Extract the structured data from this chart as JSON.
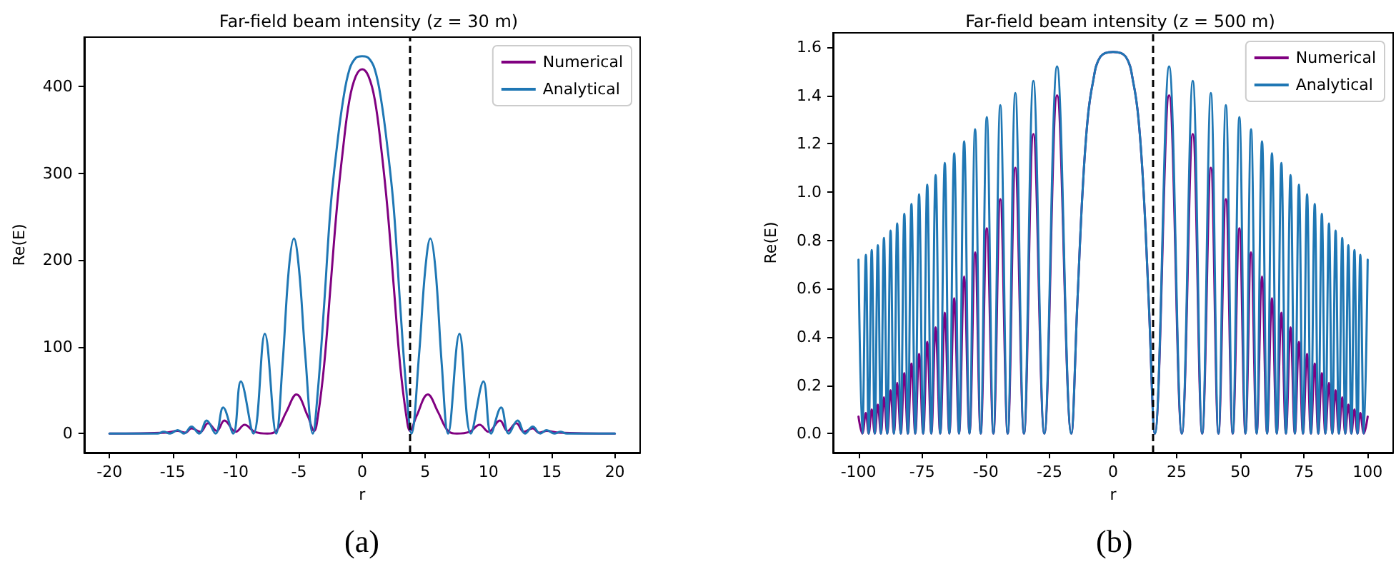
{
  "chart_data": [
    {
      "type": "line",
      "title": "Far-field beam intensity (z = 30 m)",
      "xlabel": "r",
      "ylabel": "Re(E)",
      "annotations": [
        "(a)"
      ],
      "xlim": [
        -22,
        22
      ],
      "xticks": [
        -20,
        -15,
        -10,
        -5,
        0,
        5,
        10,
        15,
        20
      ],
      "ylim": [
        -22,
        457
      ],
      "yticks": [
        0,
        100,
        200,
        300,
        400
      ],
      "legend": "top right",
      "grid": false,
      "ref_lines": [
        {
          "axis": "x",
          "value": 3.8,
          "color": "#000000",
          "line_style": "dashed"
        }
      ],
      "series": [
        {
          "name": "Numerical",
          "color": "#800080",
          "x": [
            -20,
            -15.5,
            -14.6,
            -14,
            -13.5,
            -12.8,
            -12.2,
            -11.5,
            -10.9,
            -10,
            -9.3,
            -8.5,
            -7.5,
            -6.8,
            -6,
            -5.2,
            -4.3,
            -3.8,
            -3.5,
            -3,
            -2.5,
            -2,
            -1.5,
            -1,
            -0.5,
            0,
            0.5,
            1,
            1.5,
            2,
            2.5,
            3,
            3.5,
            3.8,
            4.3,
            5.2,
            6,
            6.8,
            7.5,
            8.5,
            9.3,
            10,
            10.9,
            11.5,
            12.2,
            12.8,
            13.5,
            14,
            14.6,
            15.5,
            20
          ],
          "values": [
            0,
            1,
            3,
            1,
            6,
            2,
            12,
            3,
            15,
            2,
            10,
            2,
            0,
            3,
            25,
            45,
            20,
            3,
            20,
            80,
            170,
            260,
            330,
            385,
            412,
            420,
            412,
            385,
            330,
            260,
            170,
            80,
            20,
            3,
            20,
            45,
            25,
            3,
            0,
            2,
            10,
            2,
            15,
            3,
            12,
            2,
            6,
            1,
            3,
            1,
            0
          ]
        },
        {
          "name": "Analytical",
          "color": "#1f77b4",
          "x": [
            -20,
            -16.2,
            -15.7,
            -15.2,
            -14.6,
            -14.1,
            -13.5,
            -12.9,
            -12.3,
            -11.6,
            -11,
            -10.2,
            -9.6,
            -8.6,
            -7.7,
            -6.8,
            -6.3,
            -5.8,
            -5.4,
            -5,
            -4.5,
            -3.9,
            -3.5,
            -3,
            -2.5,
            -2,
            -1.5,
            -1,
            -0.5,
            0,
            0.5,
            1,
            1.5,
            2,
            2.5,
            3,
            3.5,
            3.9,
            4.5,
            5,
            5.4,
            5.8,
            6.3,
            6.8,
            7.7,
            8.6,
            9.6,
            10.2,
            11,
            11.6,
            12.3,
            12.9,
            13.5,
            14.1,
            14.6,
            15.2,
            15.7,
            16.2,
            20
          ],
          "values": [
            0,
            0,
            2,
            0,
            4,
            0,
            8,
            0,
            15,
            0,
            30,
            0,
            60,
            0,
            115,
            0,
            80,
            190,
            225,
            190,
            90,
            0,
            50,
            150,
            260,
            330,
            385,
            420,
            433,
            435,
            433,
            420,
            385,
            330,
            260,
            150,
            50,
            0,
            90,
            190,
            225,
            190,
            80,
            0,
            115,
            0,
            60,
            0,
            30,
            0,
            15,
            0,
            8,
            0,
            4,
            0,
            2,
            0,
            0
          ]
        }
      ]
    },
    {
      "type": "line",
      "title": "Far-field beam intensity (z = 500 m)",
      "xlabel": "r",
      "ylabel": "Re(E)",
      "annotations": [
        "(b)"
      ],
      "xlim": [
        -110,
        110
      ],
      "xticks": [
        -100,
        -75,
        -50,
        -25,
        0,
        25,
        50,
        75,
        100
      ],
      "ylim": [
        -0.079,
        1.659
      ],
      "yticks": [
        {
          "value": 0,
          "label": "0.0"
        },
        {
          "value": 0.2,
          "label": "0.2"
        },
        {
          "value": 0.4,
          "label": "0.4"
        },
        {
          "value": 0.6,
          "label": "0.6"
        },
        {
          "value": 0.8,
          "label": "0.8"
        },
        {
          "value": 1,
          "label": "1.0"
        },
        {
          "value": 1.2,
          "label": "1.2"
        },
        {
          "value": 1.4,
          "label": "1.4"
        },
        {
          "value": 1.6,
          "label": "1.6"
        }
      ],
      "legend": "top right",
      "grid": false,
      "ref_lines": [
        {
          "axis": "x",
          "value": 15.5,
          "color": "#000000",
          "line_style": "dashed"
        }
      ],
      "x": [
        -100,
        -98.5,
        -97.1,
        -96,
        -94.8,
        -93.6,
        -92.4,
        -91.2,
        -90,
        -88.7,
        -87.4,
        -86.1,
        -84.8,
        -83.4,
        -82,
        -80.6,
        -79.2,
        -77.7,
        -76.2,
        -74.6,
        -73,
        -71.4,
        -69.7,
        -67.9,
        -66.1,
        -64.3,
        -62.4,
        -60.5,
        -58.5,
        -56.4,
        -54.2,
        -52,
        -49.6,
        -47,
        -44.3,
        -41.4,
        -38.4,
        -35,
        -31.3,
        -27,
        -22,
        -16.4,
        -14,
        -12,
        -10,
        -8,
        -5,
        0,
        5,
        8,
        10,
        12,
        14,
        16.4,
        22,
        27,
        31.3,
        35,
        38.4,
        41.4,
        44.3,
        47,
        49.6,
        52,
        54.2,
        56.4,
        58.5,
        60.5,
        62.4,
        64.3,
        66.1,
        67.9,
        69.7,
        71.4,
        73,
        74.6,
        76.2,
        77.7,
        79.2,
        80.6,
        82,
        83.4,
        84.8,
        86.1,
        87.4,
        88.7,
        90,
        91.2,
        92.4,
        93.6,
        94.8,
        96,
        97.1,
        98.5,
        100
      ],
      "series": [
        {
          "name": "Numerical",
          "color": "#800080",
          "values": [
            0.07,
            0,
            0.085,
            0,
            0.1,
            0,
            0.12,
            0,
            0.15,
            0,
            0.18,
            0,
            0.21,
            0,
            0.25,
            0,
            0.29,
            0,
            0.33,
            0,
            0.38,
            0,
            0.44,
            0,
            0.5,
            0,
            0.56,
            0,
            0.65,
            0,
            0.75,
            0,
            0.85,
            0,
            0.97,
            0,
            1.1,
            0,
            1.24,
            0,
            1.4,
            0,
            0.55,
            1.0,
            1.3,
            1.45,
            1.56,
            1.58,
            1.56,
            1.45,
            1.3,
            1.0,
            0.55,
            0,
            1.4,
            0,
            1.24,
            0,
            1.1,
            0,
            0.97,
            0,
            0.85,
            0,
            0.75,
            0,
            0.65,
            0,
            0.56,
            0,
            0.5,
            0,
            0.44,
            0,
            0.38,
            0,
            0.33,
            0,
            0.29,
            0,
            0.25,
            0,
            0.21,
            0,
            0.18,
            0,
            0.15,
            0,
            0.12,
            0,
            0.1,
            0,
            0.085,
            0,
            0.07
          ]
        },
        {
          "name": "Analytical",
          "color": "#1f77b4",
          "values": [
            0.72,
            0,
            0.74,
            0,
            0.76,
            0,
            0.78,
            0,
            0.81,
            0,
            0.84,
            0,
            0.87,
            0,
            0.91,
            0,
            0.95,
            0,
            0.99,
            0,
            1.03,
            0,
            1.07,
            0,
            1.12,
            0,
            1.16,
            0,
            1.21,
            0,
            1.26,
            0,
            1.31,
            0,
            1.36,
            0,
            1.41,
            0,
            1.46,
            0,
            1.52,
            0,
            0.55,
            1.0,
            1.3,
            1.45,
            1.56,
            1.58,
            1.56,
            1.45,
            1.3,
            1.0,
            0.55,
            0,
            1.52,
            0,
            1.46,
            0,
            1.41,
            0,
            1.36,
            0,
            1.31,
            0,
            1.26,
            0,
            1.21,
            0,
            1.16,
            0,
            1.12,
            0,
            1.07,
            0,
            1.03,
            0,
            0.99,
            0,
            0.95,
            0,
            0.91,
            0,
            0.87,
            0,
            0.84,
            0,
            0.81,
            0,
            0.78,
            0,
            0.76,
            0,
            0.74,
            0,
            0.72
          ]
        }
      ]
    }
  ]
}
